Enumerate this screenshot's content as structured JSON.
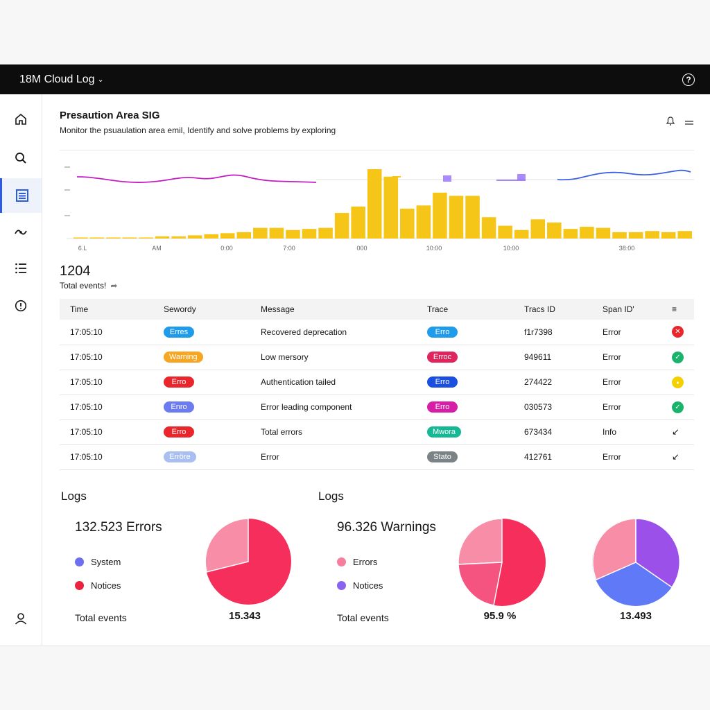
{
  "app": {
    "title": "18M Cloud Log"
  },
  "sidebar": {
    "items": [
      "home",
      "search",
      "logs",
      "graph",
      "list",
      "info",
      "user"
    ]
  },
  "page": {
    "title": "Presaution Area SIG",
    "subtitle": "Monitor the psuaulation area emil, Identify and solve problems by exploring"
  },
  "timeline": {
    "x_labels": [
      "6.L",
      "AM",
      "0:00",
      "7:00",
      "000",
      "10:00",
      "10:00",
      "38:00"
    ],
    "bars": [
      1,
      1,
      1,
      1,
      1,
      2,
      2,
      3,
      4,
      5,
      6,
      10,
      10,
      8,
      9,
      10,
      24,
      30,
      65,
      58,
      28,
      31,
      43,
      40,
      40,
      20,
      12,
      8,
      18,
      15,
      9,
      11,
      10,
      6,
      6,
      7,
      6,
      7
    ],
    "accent": "#f5c518"
  },
  "totals": {
    "count": "1204",
    "label": "Total events!"
  },
  "table": {
    "headers": [
      "Time",
      "Sewordy",
      "Message",
      "Trace",
      "Tracs ID",
      "Span ID'"
    ],
    "rows": [
      {
        "time": "17:05:10",
        "sev": "Erres",
        "sev_color": "#1e9bea",
        "msg": "Recovered deprecation",
        "trace": "Erro",
        "trace_color": "#1e9bea",
        "tid": "f1r7398",
        "span": "Error",
        "stat": "x",
        "stat_color": "#e8262c"
      },
      {
        "time": "17:05:10",
        "sev": "Warning",
        "sev_color": "#f5a623",
        "msg": "Low mersory",
        "trace": "Erroc",
        "trace_color": "#e0245e",
        "tid": "949611",
        "span": "Error",
        "stat": "check",
        "stat_color": "#19b36b"
      },
      {
        "time": "17:05:10",
        "sev": "Erro",
        "sev_color": "#e8262c",
        "msg": "Authentication tailed",
        "trace": "Erro",
        "trace_color": "#1a4fe0",
        "tid": "274422",
        "span": "Error",
        "stat": "dot",
        "stat_color": "#f5d000"
      },
      {
        "time": "17:05:10",
        "sev": "Enro",
        "sev_color": "#6b7cf0",
        "msg": "Error leading component",
        "trace": "Erro",
        "trace_color": "#d61fa6",
        "tid": "030573",
        "span": "Error",
        "stat": "check",
        "stat_color": "#19b36b"
      },
      {
        "time": "17:05:10",
        "sev": "Erro",
        "sev_color": "#e8262c",
        "msg": "Total errors",
        "trace": "Mwora",
        "trace_color": "#16b894",
        "tid": "673434",
        "span": "Info",
        "stat": "arrow",
        "stat_color": "#161616"
      },
      {
        "time": "17:05:10",
        "sev": "Erröre",
        "sev_color": "#a9bff2",
        "msg": "Error",
        "trace": "Stato",
        "trace_color": "#7b8386",
        "tid": "412761",
        "span": "Error",
        "stat": "arrow",
        "stat_color": "#161616"
      }
    ]
  },
  "logs_left": {
    "title": "Logs",
    "headline": "132.523 Errors",
    "legend": [
      {
        "label": "System",
        "color": "#6b6ff0"
      },
      {
        "label": "Notices",
        "color": "#ea2340"
      }
    ],
    "total_label": "Total events",
    "value": "15.343"
  },
  "logs_right": {
    "title": "Logs",
    "headline": "96.326 Warnings",
    "legend": [
      {
        "label": "Errors",
        "color": "#f57f9c"
      },
      {
        "label": "Notices",
        "color": "#8a62f0"
      }
    ],
    "total_label": "Total events",
    "value_a": "95.9 %",
    "value_b": "13.493"
  },
  "colors": {
    "pink": "#f78da7",
    "red": "#f52e5b",
    "rose": "#f55481",
    "blue": "#6079f7",
    "purple": "#9b50ea"
  }
}
